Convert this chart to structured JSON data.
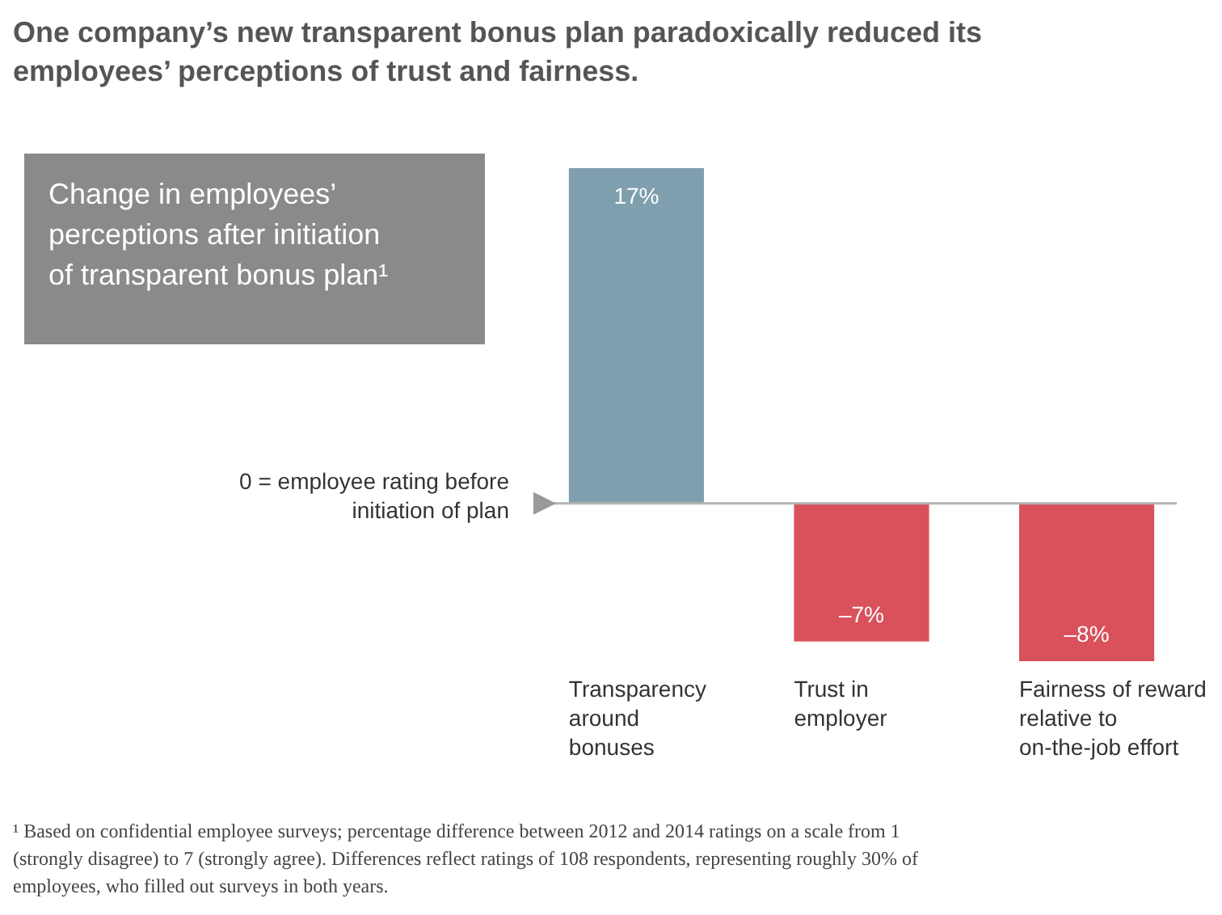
{
  "chart_data": {
    "type": "bar",
    "title": "One company’s new transparent bonus plan paradoxically reduced its employees’ perceptions of trust and fairness.",
    "subtitle": "Change in employees’ perceptions after initiation of transparent bonus plan¹",
    "categories": [
      "Transparency around bonuses",
      "Trust in employer",
      "Fairness of reward relative to on-the-job effort"
    ],
    "values": [
      17,
      -7,
      -8
    ],
    "colors": [
      "#7f9fae",
      "#d9515b",
      "#d9515b"
    ],
    "value_labels": [
      "17%",
      "–7%",
      "–8%"
    ],
    "ref_lines": [
      {
        "axis": "y",
        "value": 0,
        "label": "0 = employee rating before initiation of plan",
        "color": "#b3b3b3"
      }
    ],
    "annotations": [
      "¹ Based on confidential employee surveys; percentage difference between 2012 and 2014 ratings on a scale from 1 (strongly disagree) to 7 (strongly agree). Differences reflect ratings of 108 respondents, representing roughly 30% of employees, who filled out surveys in both years."
    ]
  }
}
